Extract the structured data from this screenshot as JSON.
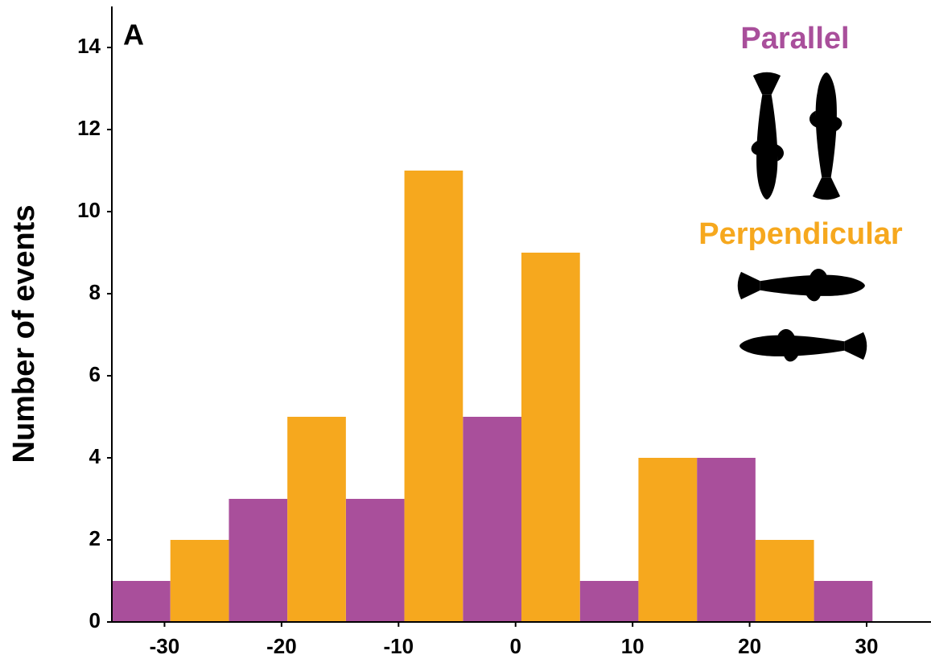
{
  "chart_data": {
    "type": "histogram",
    "panel_label": "A",
    "ylabel": "Number of events",
    "bins": [
      -34.5,
      -29.5,
      -24.5,
      -19.5,
      -14.5,
      -9.5,
      -4.5,
      0.5,
      5.5,
      10.5,
      15.5,
      20.5,
      25.5,
      30.5
    ],
    "series": [
      {
        "name": "Parallel",
        "color": "#a94f9b",
        "values": [
          1,
          null,
          3,
          null,
          3,
          null,
          5,
          null,
          1,
          null,
          4,
          null,
          1
        ]
      },
      {
        "name": "Perpendicular",
        "color": "#f6a81e",
        "values": [
          null,
          2,
          null,
          5,
          null,
          11,
          null,
          9,
          null,
          4,
          null,
          2,
          null
        ]
      }
    ],
    "xlim": [
      -34.5,
      35.5
    ],
    "xticks": [
      -30,
      -20,
      -10,
      0,
      10,
      20,
      30
    ],
    "ylim": [
      0,
      15
    ],
    "yticks": [
      0,
      2,
      4,
      6,
      8,
      10,
      12,
      14
    ]
  }
}
